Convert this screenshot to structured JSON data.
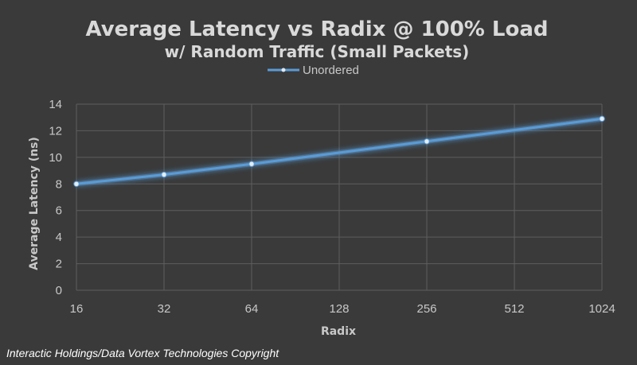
{
  "chart_data": {
    "type": "line",
    "title": "Average Latency vs Radix @ 100% Load",
    "subtitle": "w/ Random Traffic (Small Packets)",
    "xlabel": "Radix",
    "ylabel": "Average Latency (ns)",
    "categories": [
      "16",
      "32",
      "64",
      "128",
      "256",
      "512",
      "1024"
    ],
    "series": [
      {
        "name": "Unordered",
        "color": "#5b9bd5",
        "points": [
          {
            "x": "16",
            "y": 8.0
          },
          {
            "x": "32",
            "y": 8.7
          },
          {
            "x": "64",
            "y": 9.5
          },
          {
            "x": "256",
            "y": 11.2
          },
          {
            "x": "1024",
            "y": 12.9
          }
        ]
      }
    ],
    "ylim": [
      0,
      14
    ],
    "yticks": [
      0,
      2,
      4,
      6,
      8,
      10,
      12,
      14
    ],
    "grid": true,
    "legend": "top"
  },
  "footer": {
    "copyright": "Interactic Holdings/Data Vortex Technologies Copyright"
  }
}
